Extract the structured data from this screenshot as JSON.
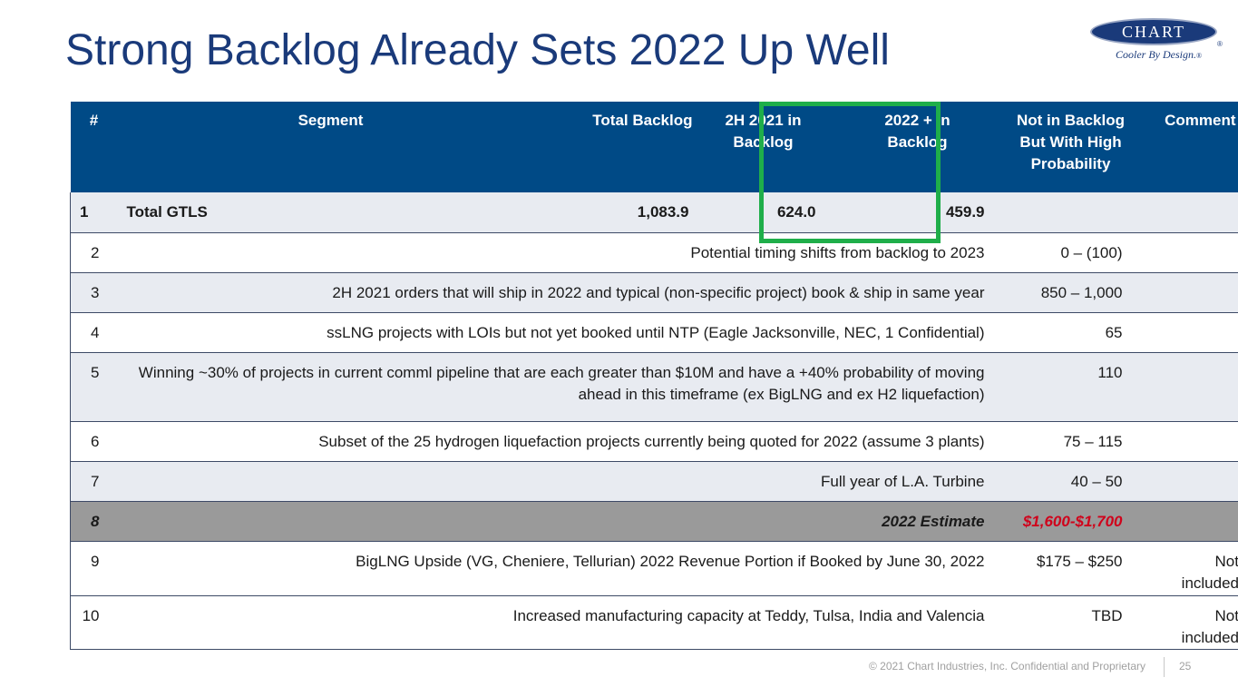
{
  "title": "Strong Backlog Already Sets 2022 Up Well",
  "logo": {
    "name": "CHART",
    "tagline": "Cooler By Design.",
    "mark": "®"
  },
  "table": {
    "headers": {
      "num": "#",
      "segment": "Segment",
      "total_backlog": "Total Backlog",
      "h2_2021": "2H 2021 in Backlog",
      "y2022_plus": "2022 + in Backlog",
      "not_in_backlog": "Not in Backlog But With High Probability",
      "comment": "Comment"
    },
    "total_row": {
      "num": "1",
      "segment": "Total GTLS",
      "total_backlog": "1,083.9",
      "h2_2021": "624.0",
      "y2022_plus": "459.9"
    },
    "rows": [
      {
        "num": "2",
        "description": "Potential timing shifts from backlog to 2023",
        "value": "0 – (100)",
        "comment": ""
      },
      {
        "num": "3",
        "description": "2H 2021 orders that will ship in 2022 and typical (non-specific project) book & ship in same year",
        "value": "850 – 1,000",
        "comment": ""
      },
      {
        "num": "4",
        "description": "ssLNG projects with LOIs but not yet booked until NTP (Eagle Jacksonville, NEC, 1 Confidential)",
        "value": "65",
        "comment": ""
      },
      {
        "num": "5",
        "description": "Winning ~30% of projects in current comml pipeline that are each greater than $10M and have a +40% probability of moving ahead in this timeframe (ex BigLNG and ex H2 liquefaction)",
        "value": "110",
        "comment": ""
      },
      {
        "num": "6",
        "description": "Subset of the 25 hydrogen liquefaction projects currently being quoted for 2022 (assume 3 plants)",
        "value": "75 – 115",
        "comment": ""
      },
      {
        "num": "7",
        "description": "Full year of L.A. Turbine",
        "value": "40 – 50",
        "comment": ""
      }
    ],
    "estimate_row": {
      "num": "8",
      "description": "2022 Estimate",
      "value": "$1,600-$1,700"
    },
    "extra_rows": [
      {
        "num": "9",
        "description": "BigLNG Upside (VG, Cheniere, Tellurian) 2022 Revenue Portion if Booked by June 30, 2022",
        "value": "$175 – $250",
        "comment": "Not included"
      },
      {
        "num": "10",
        "description": "Increased manufacturing capacity at Teddy, Tulsa, India and Valencia",
        "value": "TBD",
        "comment": "Not included"
      }
    ]
  },
  "colors": {
    "header_bg": "#004a86",
    "title": "#1a3a7a",
    "highlight": "#1fae4a",
    "estimate_value": "#d0021b"
  },
  "footer": {
    "copyright": "© 2021 Chart Industries, Inc. Confidential and Proprietary",
    "page": "25"
  }
}
